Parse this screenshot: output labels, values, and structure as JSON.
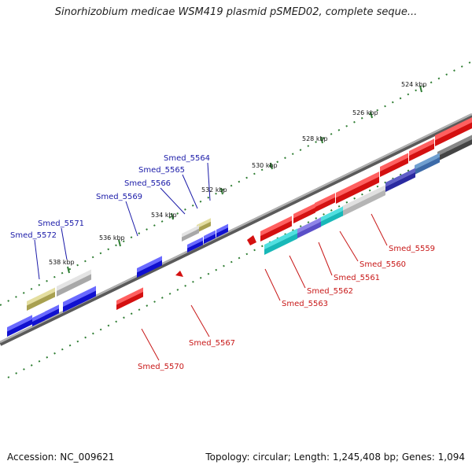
{
  "title": "Sinorhizobium medicae WSM419 plasmid pSMED02, complete seque...",
  "footer": {
    "accession": "Accession: NC_009621",
    "topology": "Topology: circular; Length: 1,245,408 bp; Genes: 1,094"
  },
  "colors": {
    "forward_label": "#1a1aa8",
    "reverse_label": "#c81818",
    "tick": "#2e7d32",
    "backbone": "#8a8a8a"
  },
  "ticks": [
    {
      "label": "524 kbp",
      "kbp": 524
    },
    {
      "label": "526 kbp",
      "kbp": 526
    },
    {
      "label": "528 kbp",
      "kbp": 528
    },
    {
      "label": "530 kbp",
      "kbp": 530
    },
    {
      "label": "532 kbp",
      "kbp": 532
    },
    {
      "label": "534 kbp",
      "kbp": 534
    },
    {
      "label": "536 kbp",
      "kbp": 536
    },
    {
      "label": "538 kbp",
      "kbp": 538
    }
  ],
  "gene_labels": {
    "forward": [
      {
        "name": "Smed_5564"
      },
      {
        "name": "Smed_5565"
      },
      {
        "name": "Smed_5566"
      },
      {
        "name": "Smed_5569"
      },
      {
        "name": "Smed_5571"
      },
      {
        "name": "Smed_5572"
      }
    ],
    "reverse": [
      {
        "name": "Smed_5559"
      },
      {
        "name": "Smed_5560"
      },
      {
        "name": "Smed_5561"
      },
      {
        "name": "Smed_5562"
      },
      {
        "name": "Smed_5563"
      },
      {
        "name": "Smed_5567"
      },
      {
        "name": "Smed_5570"
      }
    ]
  }
}
